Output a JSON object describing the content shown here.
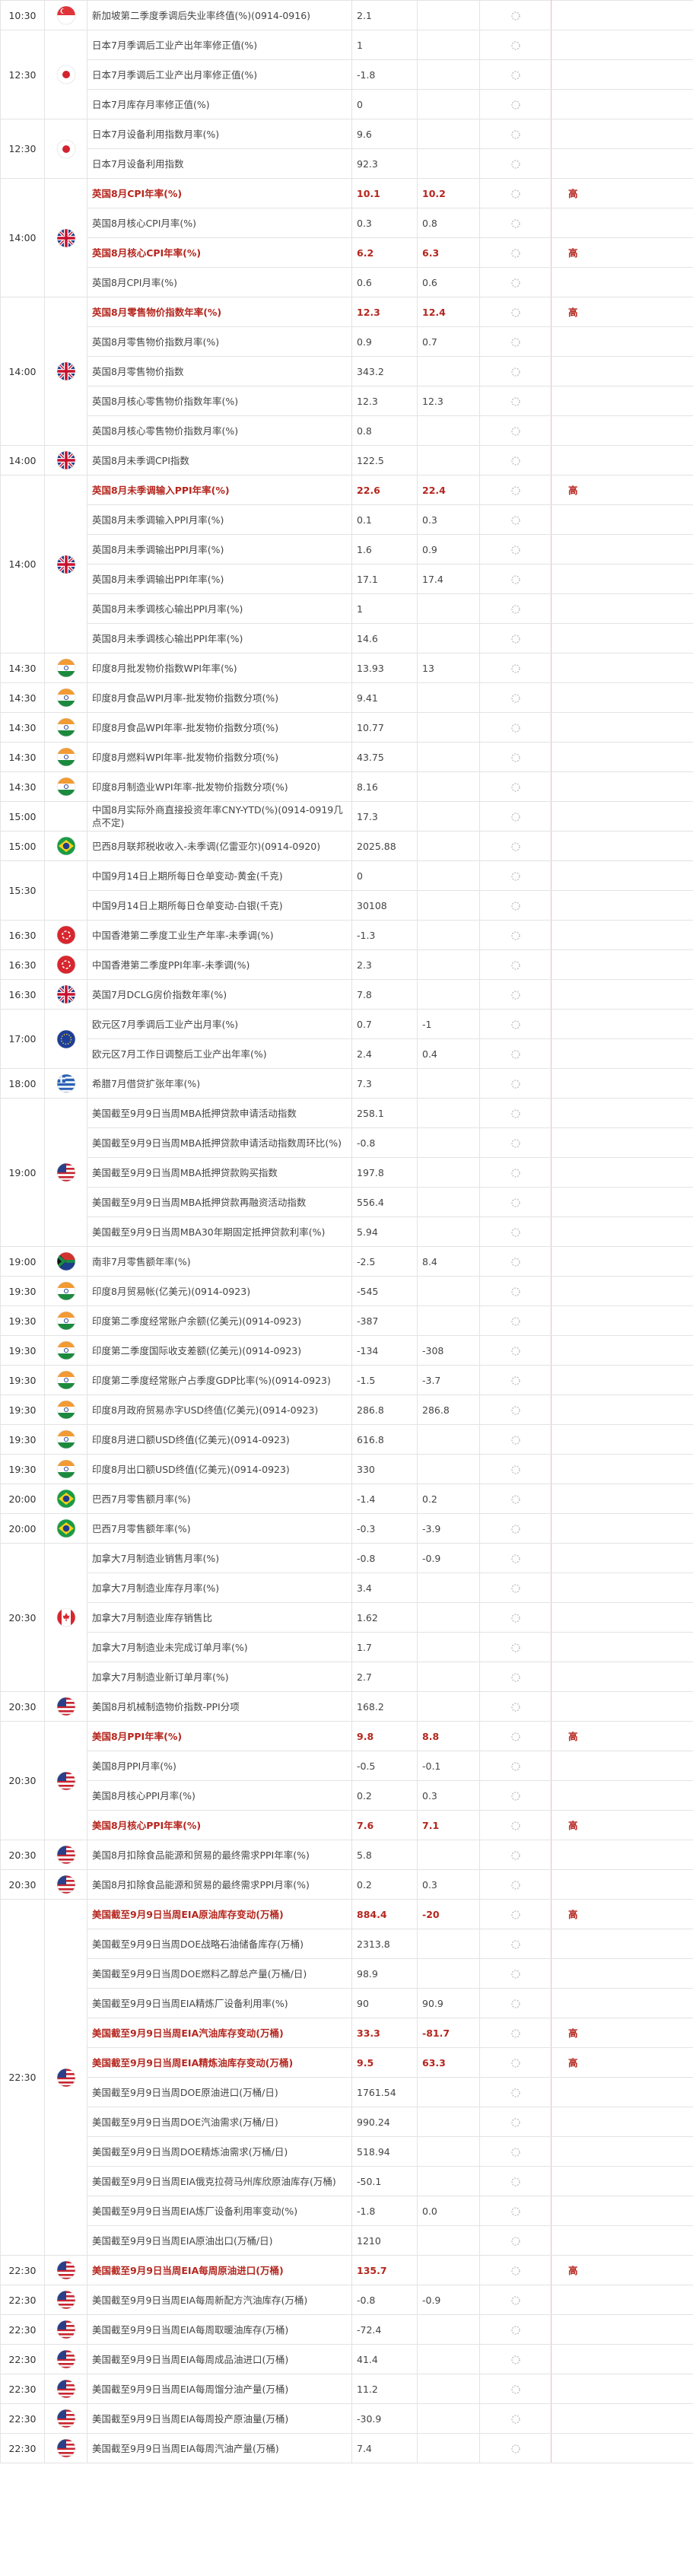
{
  "groups": [
    {
      "time": "10:30",
      "rows": [
        {
          "name": "新加坡第二季度季调后失业率终值(%)(0914-0916)",
          "previous": "2.1"
        }
      ]
    },
    {
      "time": "12:30",
      "rows": [
        {
          "name": "日本7月季调后工业产出年率修正值(%)",
          "previous": "1"
        },
        {
          "name": "日本7月季调后工业产出月率修正值(%)",
          "previous": "-1.8"
        },
        {
          "name": "日本7月库存月率修正值(%)",
          "previous": "0"
        }
      ]
    },
    {
      "time": "12:30",
      "rows": [
        {
          "name": "日本7月设备利用指数月率(%)",
          "previous": "9.6"
        },
        {
          "name": "日本7月设备利用指数",
          "previous": "92.3"
        }
      ]
    },
    {
      "time": "14:00",
      "rows": [
        {
          "name": "英国8月CPI年率(%)",
          "previous": "10.1",
          "forecast": "10.2",
          "importance": "高"
        },
        {
          "name": "英国8月核心CPI月率(%)",
          "previous": "0.3",
          "forecast": "0.8"
        },
        {
          "name": "英国8月核心CPI年率(%)",
          "previous": "6.2",
          "forecast": "6.3",
          "importance": "高"
        },
        {
          "name": "英国8月CPI月率(%)",
          "previous": "0.6",
          "forecast": "0.6"
        }
      ]
    },
    {
      "time": "14:00",
      "rows": [
        {
          "name": "英国8月零售物价指数年率(%)",
          "previous": "12.3",
          "forecast": "12.4",
          "importance": "高"
        },
        {
          "name": "英国8月零售物价指数月率(%)",
          "previous": "0.9",
          "forecast": "0.7"
        },
        {
          "name": "英国8月零售物价指数",
          "previous": "343.2"
        },
        {
          "name": "英国8月核心零售物价指数年率(%)",
          "previous": "12.3",
          "forecast": "12.3"
        },
        {
          "name": "英国8月核心零售物价指数月率(%)",
          "previous": "0.8"
        }
      ]
    },
    {
      "time": "14:00",
      "rows": [
        {
          "name": "英国8月未季调CPI指数",
          "previous": "122.5"
        }
      ]
    },
    {
      "time": "14:00",
      "rows": [
        {
          "name": "英国8月未季调输入PPI年率(%)",
          "previous": "22.6",
          "forecast": "22.4",
          "importance": "高"
        },
        {
          "name": "英国8月未季调输入PPI月率(%)",
          "previous": "0.1",
          "forecast": "0.3"
        },
        {
          "name": "英国8月未季调输出PPI月率(%)",
          "previous": "1.6",
          "forecast": "0.9"
        },
        {
          "name": "英国8月未季调输出PPI年率(%)",
          "previous": "17.1",
          "forecast": "17.4"
        },
        {
          "name": "英国8月未季调核心输出PPI月率(%)",
          "previous": "1"
        },
        {
          "name": "英国8月未季调核心输出PPI年率(%)",
          "previous": "14.6"
        }
      ]
    },
    {
      "time": "14:30",
      "rows": [
        {
          "name": "印度8月批发物价指数WPI年率(%)",
          "previous": "13.93",
          "forecast": "13"
        }
      ]
    },
    {
      "time": "14:30",
      "rows": [
        {
          "name": "印度8月食品WPI月率-批发物价指数分项(%)",
          "previous": "9.41"
        }
      ]
    },
    {
      "time": "14:30",
      "rows": [
        {
          "name": "印度8月食品WPI年率-批发物价指数分项(%)",
          "previous": "10.77"
        }
      ]
    },
    {
      "time": "14:30",
      "rows": [
        {
          "name": "印度8月燃料WPI年率-批发物价指数分项(%)",
          "previous": "43.75"
        }
      ]
    },
    {
      "time": "14:30",
      "rows": [
        {
          "name": "印度8月制造业WPI年率-批发物价指数分项(%)",
          "previous": "8.16"
        }
      ]
    },
    {
      "time": "15:00",
      "rows": [
        {
          "name": "中国8月实际外商直接投资年率CNY-YTD(%)(0914-0919几点不定)",
          "previous": "17.3"
        }
      ]
    },
    {
      "time": "15:00",
      "rows": [
        {
          "name": "巴西8月联邦税收收入-未季调(亿雷亚尔)(0914-0920)",
          "previous": "2025.88"
        }
      ]
    },
    {
      "time": "15:30",
      "rows": [
        {
          "name": "中国9月14日上期所每日仓单变动-黄金(千克)",
          "previous": "0"
        },
        {
          "name": "中国9月14日上期所每日仓单变动-白银(千克)",
          "previous": "30108"
        }
      ]
    },
    {
      "time": "16:30",
      "rows": [
        {
          "name": "中国香港第二季度工业生产年率-未季调(%)",
          "previous": "-1.3"
        }
      ]
    },
    {
      "time": "16:30",
      "rows": [
        {
          "name": "中国香港第二季度PPI年率-未季调(%)",
          "previous": "2.3"
        }
      ]
    },
    {
      "time": "16:30",
      "rows": [
        {
          "name": "英国7月DCLG房价指数年率(%)",
          "previous": "7.8"
        }
      ]
    },
    {
      "time": "17:00",
      "rows": [
        {
          "name": "欧元区7月季调后工业产出月率(%)",
          "previous": "0.7",
          "forecast": "-1"
        },
        {
          "name": "欧元区7月工作日调整后工业产出年率(%)",
          "previous": "2.4",
          "forecast": "0.4"
        }
      ]
    },
    {
      "time": "18:00",
      "rows": [
        {
          "name": "希腊7月借贷扩张年率(%)",
          "previous": "7.3"
        }
      ]
    },
    {
      "time": "19:00",
      "rows": [
        {
          "name": "美国截至9月9日当周MBA抵押贷款申请活动指数",
          "previous": "258.1"
        },
        {
          "name": "美国截至9月9日当周MBA抵押贷款申请活动指数周环比(%)",
          "previous": "-0.8"
        },
        {
          "name": "美国截至9月9日当周MBA抵押贷款购买指数",
          "previous": "197.8"
        },
        {
          "name": "美国截至9月9日当周MBA抵押贷款再融资活动指数",
          "previous": "556.4"
        },
        {
          "name": "美国截至9月9日当周MBA30年期固定抵押贷款利率(%)",
          "previous": "5.94"
        }
      ]
    },
    {
      "time": "19:00",
      "rows": [
        {
          "name": "南非7月零售额年率(%)",
          "previous": "-2.5",
          "forecast": "8.4"
        }
      ]
    },
    {
      "time": "19:30",
      "rows": [
        {
          "name": "印度8月贸易帐(亿美元)(0914-0923)",
          "previous": "-545"
        }
      ]
    },
    {
      "time": "19:30",
      "rows": [
        {
          "name": "印度第二季度经常账户余额(亿美元)(0914-0923)",
          "previous": "-387"
        }
      ]
    },
    {
      "time": "19:30",
      "rows": [
        {
          "name": "印度第二季度国际收支差额(亿美元)(0914-0923)",
          "previous": "-134",
          "forecast": "-308"
        }
      ]
    },
    {
      "time": "19:30",
      "rows": [
        {
          "name": "印度第二季度经常账户占季度GDP比率(%)(0914-0923)",
          "previous": "-1.5",
          "forecast": "-3.7"
        }
      ]
    },
    {
      "time": "19:30",
      "rows": [
        {
          "name": "印度8月政府贸易赤字USD终值(亿美元)(0914-0923)",
          "previous": "286.8",
          "forecast": "286.8"
        }
      ]
    },
    {
      "time": "19:30",
      "rows": [
        {
          "name": "印度8月进口额USD终值(亿美元)(0914-0923)",
          "previous": "616.8"
        }
      ]
    },
    {
      "time": "19:30",
      "rows": [
        {
          "name": "印度8月出口额USD终值(亿美元)(0914-0923)",
          "previous": "330"
        }
      ]
    },
    {
      "time": "20:00",
      "rows": [
        {
          "name": "巴西7月零售额月率(%)",
          "previous": "-1.4",
          "forecast": "0.2"
        }
      ]
    },
    {
      "time": "20:00",
      "rows": [
        {
          "name": "巴西7月零售额年率(%)",
          "previous": "-0.3",
          "forecast": "-3.9"
        }
      ]
    },
    {
      "time": "20:30",
      "rows": [
        {
          "name": "加拿大7月制造业销售月率(%)",
          "previous": "-0.8",
          "forecast": "-0.9"
        },
        {
          "name": "加拿大7月制造业库存月率(%)",
          "previous": "3.4"
        },
        {
          "name": "加拿大7月制造业库存销售比",
          "previous": "1.62"
        },
        {
          "name": "加拿大7月制造业未完成订单月率(%)",
          "previous": "1.7"
        },
        {
          "name": "加拿大7月制造业新订单月率(%)",
          "previous": "2.7"
        }
      ]
    },
    {
      "time": "20:30",
      "rows": [
        {
          "name": "美国8月机械制造物价指数-PPI分项",
          "previous": "168.2"
        }
      ]
    },
    {
      "time": "20:30",
      "rows": [
        {
          "name": "美国8月PPI年率(%)",
          "previous": "9.8",
          "forecast": "8.8",
          "importance": "高"
        },
        {
          "name": "美国8月PPI月率(%)",
          "previous": "-0.5",
          "forecast": "-0.1"
        },
        {
          "name": "美国8月核心PPI月率(%)",
          "previous": "0.2",
          "forecast": "0.3"
        },
        {
          "name": "美国8月核心PPI年率(%)",
          "previous": "7.6",
          "forecast": "7.1",
          "importance": "高"
        }
      ]
    },
    {
      "time": "20:30",
      "rows": [
        {
          "name": "美国8月扣除食品能源和贸易的最终需求PPI年率(%)",
          "previous": "5.8"
        }
      ]
    },
    {
      "time": "20:30",
      "rows": [
        {
          "name": "美国8月扣除食品能源和贸易的最终需求PPI月率(%)",
          "previous": "0.2",
          "forecast": "0.3"
        }
      ]
    },
    {
      "time": "22:30",
      "rows": [
        {
          "name": "美国截至9月9日当周EIA原油库存变动(万桶)",
          "previous": "884.4",
          "forecast": "-20",
          "importance": "高"
        },
        {
          "name": "美国截至9月9日当周DOE战略石油储备库存(万桶)",
          "previous": "2313.8"
        },
        {
          "name": "美国截至9月9日当周DOE燃料乙醇总产量(万桶/日)",
          "previous": "98.9"
        },
        {
          "name": "美国截至9月9日当周EIA精炼厂设备利用率(%)",
          "previous": "90",
          "forecast": "90.9"
        },
        {
          "name": "美国截至9月9日当周EIA汽油库存变动(万桶)",
          "previous": "33.3",
          "forecast": "-81.7",
          "importance": "高"
        },
        {
          "name": "美国截至9月9日当周EIA精炼油库存变动(万桶)",
          "previous": "9.5",
          "forecast": "63.3",
          "importance": "高"
        },
        {
          "name": "美国截至9月9日当周DOE原油进口(万桶/日)",
          "previous": "1761.54"
        },
        {
          "name": "美国截至9月9日当周DOE汽油需求(万桶/日)",
          "previous": "990.24"
        },
        {
          "name": "美国截至9月9日当周DOE精炼油需求(万桶/日)",
          "previous": "518.94"
        },
        {
          "name": "美国截至9月9日当周EIA俄克拉荷马州库欣原油库存(万桶)",
          "previous": "-50.1"
        },
        {
          "name": "美国截至9月9日当周EIA炼厂设备利用率变动(%)",
          "previous": "-1.8",
          "forecast": "0.0"
        },
        {
          "name": "美国截至9月9日当周EIA原油出口(万桶/日)",
          "previous": "1210"
        }
      ]
    },
    {
      "time": "22:30",
      "rows": [
        {
          "name": "美国截至9月9日当周EIA每周原油进口(万桶)",
          "previous": "135.7",
          "importance": "高"
        }
      ]
    },
    {
      "time": "22:30",
      "rows": [
        {
          "name": "美国截至9月9日当周EIA每周新配方汽油库存(万桶)",
          "previous": "-0.8",
          "forecast": "-0.9"
        }
      ]
    },
    {
      "time": "22:30",
      "rows": [
        {
          "name": "美国截至9月9日当周EIA每周取暖油库存(万桶)",
          "previous": "-72.4"
        }
      ]
    },
    {
      "time": "22:30",
      "rows": [
        {
          "name": "美国截至9月9日当周EIA每周成品油进口(万桶)",
          "previous": "41.4"
        }
      ]
    },
    {
      "time": "22:30",
      "rows": [
        {
          "name": "美国截至9月9日当周EIA每周馏分油产量(万桶)",
          "previous": "11.2"
        }
      ]
    },
    {
      "time": "22:30",
      "rows": [
        {
          "name": "美国截至9月9日当周EIA每周投产原油量(万桶)",
          "previous": "-30.9"
        }
      ]
    },
    {
      "time": "22:30",
      "rows": [
        {
          "name": "美国截至9月9日当周EIA每周汽油产量(万桶)",
          "previous": "7.4"
        }
      ]
    }
  ]
}
